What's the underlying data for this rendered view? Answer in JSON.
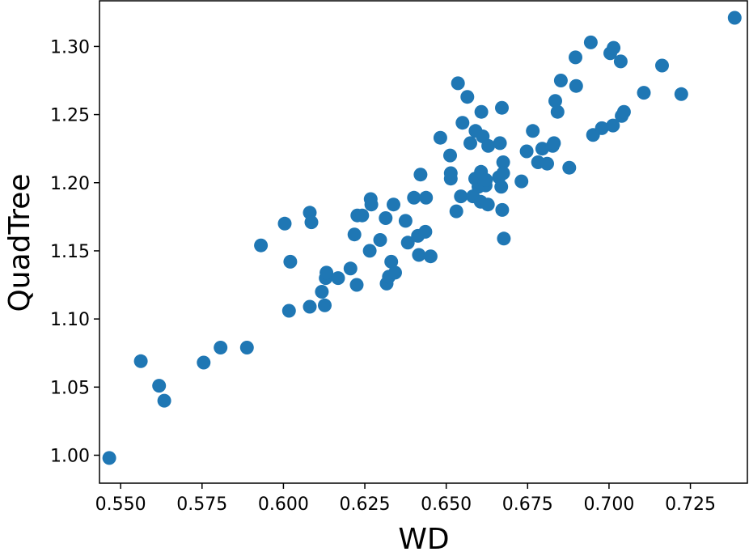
{
  "chart_data": {
    "type": "scatter",
    "title": "",
    "xlabel": "WD",
    "ylabel": "QuadTree",
    "xlim": [
      0.5435,
      0.7425
    ],
    "ylim": [
      0.9795,
      1.3335
    ],
    "xticks": [
      "0.550",
      "0.575",
      "0.600",
      "0.625",
      "0.650",
      "0.675",
      "0.700",
      "0.725"
    ],
    "yticks": [
      "1.00",
      "1.05",
      "1.10",
      "1.15",
      "1.20",
      "1.25",
      "1.30"
    ],
    "grid": false,
    "legend": "none",
    "marker_color": "#1f77b4",
    "points": [
      [
        0.5465,
        0.998
      ],
      [
        0.5562,
        1.069
      ],
      [
        0.5618,
        1.051
      ],
      [
        0.5634,
        1.04
      ],
      [
        0.5755,
        1.068
      ],
      [
        0.5807,
        1.079
      ],
      [
        0.5888,
        1.079
      ],
      [
        0.5931,
        1.154
      ],
      [
        0.6004,
        1.17
      ],
      [
        0.6017,
        1.106
      ],
      [
        0.6021,
        1.142
      ],
      [
        0.6081,
        1.109
      ],
      [
        0.6081,
        1.178
      ],
      [
        0.6086,
        1.171
      ],
      [
        0.6118,
        1.12
      ],
      [
        0.613,
        1.13
      ],
      [
        0.6132,
        1.134
      ],
      [
        0.6127,
        1.11
      ],
      [
        0.6168,
        1.13
      ],
      [
        0.6206,
        1.137
      ],
      [
        0.6218,
        1.162
      ],
      [
        0.6225,
        1.125
      ],
      [
        0.6227,
        1.176
      ],
      [
        0.6242,
        1.176
      ],
      [
        0.6265,
        1.15
      ],
      [
        0.6268,
        1.188
      ],
      [
        0.627,
        1.184
      ],
      [
        0.6297,
        1.158
      ],
      [
        0.6314,
        1.174
      ],
      [
        0.6317,
        1.126
      ],
      [
        0.6324,
        1.131
      ],
      [
        0.6331,
        1.142
      ],
      [
        0.6343,
        1.134
      ],
      [
        0.6338,
        1.184
      ],
      [
        0.6375,
        1.172
      ],
      [
        0.6382,
        1.156
      ],
      [
        0.6401,
        1.189
      ],
      [
        0.6413,
        1.161
      ],
      [
        0.6416,
        1.147
      ],
      [
        0.6421,
        1.206
      ],
      [
        0.6436,
        1.164
      ],
      [
        0.6438,
        1.189
      ],
      [
        0.6452,
        1.146
      ],
      [
        0.6482,
        1.233
      ],
      [
        0.6512,
        1.22
      ],
      [
        0.6514,
        1.203
      ],
      [
        0.6514,
        1.207
      ],
      [
        0.6531,
        1.179
      ],
      [
        0.6536,
        1.273
      ],
      [
        0.6545,
        1.19
      ],
      [
        0.655,
        1.244
      ],
      [
        0.6565,
        1.263
      ],
      [
        0.6574,
        1.229
      ],
      [
        0.6582,
        1.19
      ],
      [
        0.659,
        1.238
      ],
      [
        0.6599,
        1.197
      ],
      [
        0.6589,
        1.203
      ],
      [
        0.66,
        1.201
      ],
      [
        0.6606,
        1.186
      ],
      [
        0.6608,
        1.252
      ],
      [
        0.6607,
        1.208
      ],
      [
        0.6612,
        1.234
      ],
      [
        0.6617,
        1.2
      ],
      [
        0.6621,
        1.198
      ],
      [
        0.6622,
        1.202
      ],
      [
        0.6629,
        1.227
      ],
      [
        0.6628,
        1.184
      ],
      [
        0.6662,
        1.204
      ],
      [
        0.6665,
        1.229
      ],
      [
        0.6669,
        1.197
      ],
      [
        0.6672,
        1.18
      ],
      [
        0.6671,
        1.255
      ],
      [
        0.6675,
        1.215
      ],
      [
        0.6675,
        1.207
      ],
      [
        0.6677,
        1.159
      ],
      [
        0.6731,
        1.201
      ],
      [
        0.6747,
        1.223
      ],
      [
        0.6766,
        1.238
      ],
      [
        0.6782,
        1.215
      ],
      [
        0.6795,
        1.225
      ],
      [
        0.681,
        1.214
      ],
      [
        0.6827,
        1.227
      ],
      [
        0.6831,
        1.229
      ],
      [
        0.6835,
        1.26
      ],
      [
        0.6842,
        1.252
      ],
      [
        0.6852,
        1.275
      ],
      [
        0.6878,
        1.211
      ],
      [
        0.6897,
        1.292
      ],
      [
        0.6899,
        1.271
      ],
      [
        0.6944,
        1.303
      ],
      [
        0.6951,
        1.235
      ],
      [
        0.6978,
        1.24
      ],
      [
        0.7004,
        1.295
      ],
      [
        0.7014,
        1.299
      ],
      [
        0.7012,
        1.242
      ],
      [
        0.7036,
        1.289
      ],
      [
        0.7039,
        1.249
      ],
      [
        0.7046,
        1.252
      ],
      [
        0.7107,
        1.266
      ],
      [
        0.7163,
        1.286
      ],
      [
        0.7222,
        1.265
      ],
      [
        0.7386,
        1.321
      ]
    ]
  }
}
